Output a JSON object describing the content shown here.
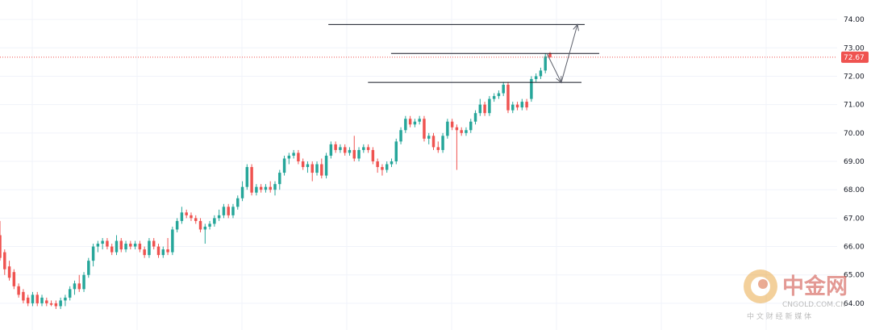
{
  "chart_data": {
    "type": "candlestick",
    "title": "",
    "xlabel": "",
    "ylabel": "",
    "ylim": [
      63.6,
      74.4
    ],
    "grid": true,
    "colors": {
      "up": "#26a69a",
      "down": "#ef5350",
      "grid": "#f0f3fa",
      "line": "#131722",
      "price_tag": "#ef5350"
    },
    "y_ticks": [
      "74.00",
      "73.00",
      "72.00",
      "71.00",
      "70.00",
      "69.00",
      "68.00",
      "67.00",
      "66.00",
      "65.00",
      "64.00"
    ],
    "last_price": "72.67",
    "candles": [
      [
        66.4,
        66.9,
        65.5,
        65.6
      ],
      [
        65.8,
        65.9,
        65.0,
        65.2
      ],
      [
        65.3,
        65.5,
        64.8,
        64.9
      ],
      [
        65.1,
        65.2,
        64.5,
        64.6
      ],
      [
        64.6,
        64.7,
        64.2,
        64.3
      ],
      [
        64.4,
        64.5,
        64.0,
        64.1
      ],
      [
        64.2,
        64.3,
        63.9,
        64.0
      ],
      [
        64.0,
        64.4,
        63.9,
        64.3
      ],
      [
        64.3,
        64.4,
        63.9,
        64.0
      ],
      [
        64.0,
        64.3,
        63.9,
        64.2
      ],
      [
        64.1,
        64.2,
        63.9,
        64.0
      ],
      [
        64.0,
        64.1,
        63.9,
        63.95
      ],
      [
        64.0,
        64.1,
        63.8,
        63.9
      ],
      [
        63.9,
        64.2,
        63.8,
        64.1
      ],
      [
        64.1,
        64.3,
        63.9,
        64.2
      ],
      [
        64.2,
        64.6,
        64.1,
        64.5
      ],
      [
        64.5,
        64.8,
        64.3,
        64.7
      ],
      [
        64.7,
        65.0,
        64.4,
        64.5
      ],
      [
        64.5,
        65.1,
        64.4,
        65.0
      ],
      [
        65.0,
        65.6,
        64.9,
        65.5
      ],
      [
        65.5,
        66.1,
        65.3,
        66.0
      ],
      [
        66.0,
        66.2,
        65.8,
        66.1
      ],
      [
        66.1,
        66.3,
        65.9,
        66.2
      ],
      [
        66.2,
        66.3,
        65.9,
        66.0
      ],
      [
        66.0,
        66.1,
        65.7,
        65.8
      ],
      [
        65.8,
        66.4,
        65.7,
        66.2
      ],
      [
        66.2,
        66.3,
        65.8,
        65.9
      ],
      [
        65.9,
        66.2,
        65.8,
        66.1
      ],
      [
        66.1,
        66.2,
        65.9,
        66.0
      ],
      [
        66.0,
        66.2,
        65.9,
        66.1
      ],
      [
        66.1,
        66.2,
        65.8,
        65.9
      ],
      [
        65.9,
        66.0,
        65.6,
        65.7
      ],
      [
        65.7,
        66.3,
        65.6,
        66.2
      ],
      [
        66.2,
        66.3,
        65.9,
        66.0
      ],
      [
        66.0,
        66.1,
        65.6,
        65.7
      ],
      [
        65.7,
        66.0,
        65.6,
        65.9
      ],
      [
        65.9,
        66.3,
        65.7,
        65.8
      ],
      [
        65.8,
        66.7,
        65.7,
        66.6
      ],
      [
        66.6,
        67.0,
        66.5,
        66.9
      ],
      [
        66.9,
        67.4,
        66.8,
        67.2
      ],
      [
        67.2,
        67.3,
        67.0,
        67.1
      ],
      [
        67.1,
        67.2,
        66.9,
        67.0
      ],
      [
        67.0,
        67.1,
        66.8,
        66.9
      ],
      [
        66.9,
        67.0,
        66.5,
        66.6
      ],
      [
        66.6,
        66.8,
        66.1,
        66.7
      ],
      [
        66.7,
        66.9,
        66.6,
        66.8
      ],
      [
        66.8,
        67.1,
        66.7,
        67.0
      ],
      [
        67.0,
        67.3,
        66.9,
        67.1
      ],
      [
        67.1,
        67.5,
        67.0,
        67.4
      ],
      [
        67.4,
        67.5,
        67.0,
        67.1
      ],
      [
        67.1,
        67.5,
        67.0,
        67.4
      ],
      [
        67.4,
        67.8,
        67.3,
        67.7
      ],
      [
        67.7,
        68.3,
        67.6,
        68.1
      ],
      [
        68.1,
        68.9,
        68.0,
        68.8
      ],
      [
        68.8,
        68.9,
        67.8,
        67.9
      ],
      [
        67.9,
        68.2,
        67.8,
        68.1
      ],
      [
        68.1,
        68.2,
        67.9,
        68.0
      ],
      [
        68.0,
        68.2,
        67.9,
        68.1
      ],
      [
        68.1,
        68.3,
        67.9,
        68.0
      ],
      [
        68.0,
        68.3,
        67.8,
        68.2
      ],
      [
        68.2,
        68.7,
        68.0,
        68.6
      ],
      [
        68.6,
        69.2,
        68.5,
        69.1
      ],
      [
        69.1,
        69.3,
        68.9,
        69.2
      ],
      [
        69.2,
        69.4,
        69.1,
        69.3
      ],
      [
        69.3,
        69.4,
        68.9,
        69.0
      ],
      [
        69.0,
        69.1,
        68.7,
        68.8
      ],
      [
        68.8,
        69.0,
        68.6,
        68.9
      ],
      [
        68.9,
        69.0,
        68.3,
        68.6
      ],
      [
        68.6,
        69.0,
        68.5,
        68.9
      ],
      [
        68.9,
        69.1,
        68.4,
        68.5
      ],
      [
        68.5,
        69.3,
        68.4,
        69.2
      ],
      [
        69.2,
        69.7,
        69.1,
        69.6
      ],
      [
        69.6,
        69.7,
        69.3,
        69.4
      ],
      [
        69.4,
        69.6,
        69.3,
        69.5
      ],
      [
        69.5,
        69.6,
        69.2,
        69.3
      ],
      [
        69.3,
        69.5,
        69.2,
        69.4
      ],
      [
        69.4,
        69.9,
        69.0,
        69.1
      ],
      [
        69.1,
        69.5,
        69.0,
        69.4
      ],
      [
        69.4,
        69.6,
        69.3,
        69.5
      ],
      [
        69.5,
        69.6,
        69.3,
        69.4
      ],
      [
        69.4,
        69.5,
        68.9,
        69.0
      ],
      [
        69.0,
        69.1,
        68.6,
        68.8
      ],
      [
        68.8,
        68.9,
        68.5,
        68.7
      ],
      [
        68.7,
        69.0,
        68.6,
        68.9
      ],
      [
        68.9,
        69.1,
        68.8,
        69.0
      ],
      [
        69.0,
        69.8,
        68.9,
        69.7
      ],
      [
        69.7,
        70.2,
        69.6,
        70.1
      ],
      [
        70.1,
        70.6,
        70.0,
        70.5
      ],
      [
        70.5,
        70.6,
        70.2,
        70.3
      ],
      [
        70.3,
        70.5,
        70.2,
        70.4
      ],
      [
        70.4,
        70.6,
        70.3,
        70.5
      ],
      [
        70.5,
        70.6,
        69.7,
        69.8
      ],
      [
        69.8,
        70.0,
        69.6,
        69.9
      ],
      [
        69.9,
        70.0,
        69.4,
        69.5
      ],
      [
        69.5,
        69.7,
        69.3,
        69.4
      ],
      [
        69.4,
        70.0,
        69.3,
        69.9
      ],
      [
        69.9,
        70.5,
        69.8,
        70.4
      ],
      [
        70.4,
        70.5,
        70.1,
        70.2
      ],
      [
        70.2,
        70.3,
        68.7,
        70.1
      ],
      [
        70.1,
        70.2,
        69.9,
        70.0
      ],
      [
        70.0,
        70.2,
        69.9,
        70.1
      ],
      [
        70.1,
        70.5,
        70.0,
        70.4
      ],
      [
        70.4,
        70.8,
        70.3,
        70.7
      ],
      [
        70.7,
        71.2,
        70.6,
        71.0
      ],
      [
        71.0,
        71.1,
        70.6,
        70.7
      ],
      [
        70.7,
        71.3,
        70.6,
        71.2
      ],
      [
        71.2,
        71.4,
        71.1,
        71.3
      ],
      [
        71.3,
        71.5,
        71.2,
        71.4
      ],
      [
        71.4,
        71.8,
        71.3,
        71.7
      ],
      [
        71.7,
        71.8,
        70.7,
        70.8
      ],
      [
        70.8,
        71.1,
        70.7,
        71.0
      ],
      [
        71.0,
        71.1,
        70.8,
        70.9
      ],
      [
        70.9,
        71.2,
        70.8,
        71.1
      ],
      [
        71.1,
        71.2,
        70.8,
        70.9
      ],
      [
        71.2,
        72.0,
        71.1,
        71.9
      ],
      [
        71.9,
        72.1,
        71.8,
        72.0
      ],
      [
        72.0,
        72.3,
        71.9,
        72.2
      ],
      [
        72.2,
        72.8,
        72.1,
        72.7
      ],
      [
        72.8,
        72.85,
        72.65,
        72.67
      ]
    ],
    "horizontal_lines": [
      {
        "price": 73.82,
        "x_start_frac": 0.377,
        "x_end_frac": 0.6713
      },
      {
        "price": 72.8,
        "x_start_frac": 0.449,
        "x_end_frac": 0.688
      },
      {
        "price": 71.78,
        "x_start_frac": 0.4225,
        "x_end_frac": 0.6676
      }
    ],
    "arrow_path": [
      {
        "x_frac": 0.6282,
        "price": 72.78
      },
      {
        "x_frac": 0.6444,
        "price": 71.78
      },
      {
        "x_frac": 0.663,
        "price": 73.82
      }
    ]
  },
  "watermark": {
    "brand": "中金网",
    "domain": "CNGOLD.COM.CN",
    "tagline": "中 文 财 经 新 媒 体"
  }
}
